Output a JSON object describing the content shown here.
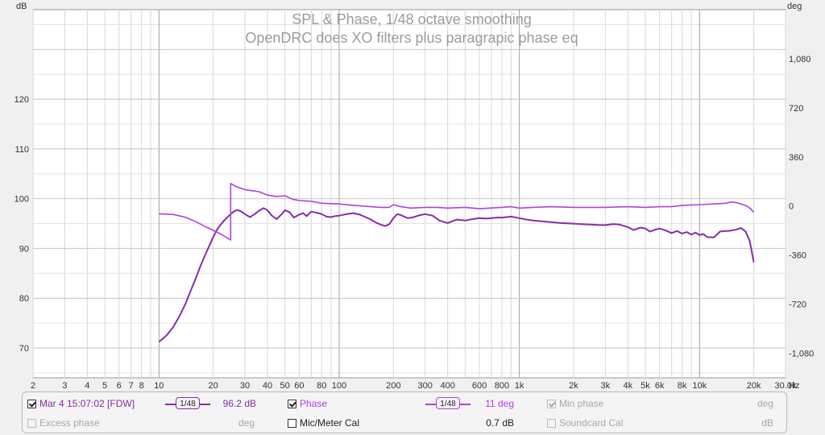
{
  "chart_data": {
    "type": "line",
    "title": "SPL & Phase, 1/48 octave smoothing",
    "subtitle": "OpenDRC does XO filters plus paragrapic phase eq",
    "ylabel_left": "dB",
    "ylabel_right": "deg",
    "xlabel": "Hz",
    "x_scale": "log",
    "xlim": [
      2,
      30000
    ],
    "ylim_left": [
      64,
      138
    ],
    "ylim_right": [
      -1260,
      1440
    ],
    "grid": true,
    "x_ticks": [
      {
        "v": 2,
        "label": "2"
      },
      {
        "v": 3,
        "label": "3"
      },
      {
        "v": 4,
        "label": "4"
      },
      {
        "v": 5,
        "label": "5"
      },
      {
        "v": 6,
        "label": "6"
      },
      {
        "v": 7,
        "label": "7"
      },
      {
        "v": 8,
        "label": "8"
      },
      {
        "v": 10,
        "label": "10"
      },
      {
        "v": 20,
        "label": "20"
      },
      {
        "v": 30,
        "label": "30"
      },
      {
        "v": 40,
        "label": "40"
      },
      {
        "v": 50,
        "label": "50"
      },
      {
        "v": 60,
        "label": "60"
      },
      {
        "v": 80,
        "label": "80"
      },
      {
        "v": 100,
        "label": "100"
      },
      {
        "v": 200,
        "label": "200"
      },
      {
        "v": 300,
        "label": "300"
      },
      {
        "v": 400,
        "label": "400"
      },
      {
        "v": 600,
        "label": "600"
      },
      {
        "v": 800,
        "label": "800"
      },
      {
        "v": 1000,
        "label": "1k"
      },
      {
        "v": 2000,
        "label": "2k"
      },
      {
        "v": 3000,
        "label": "3k"
      },
      {
        "v": 4000,
        "label": "4k"
      },
      {
        "v": 5000,
        "label": "5k"
      },
      {
        "v": 6000,
        "label": "6k"
      },
      {
        "v": 8000,
        "label": "8k"
      },
      {
        "v": 10000,
        "label": "10k"
      },
      {
        "v": 20000,
        "label": "20k"
      },
      {
        "v": 30000,
        "label": "30.0k"
      }
    ],
    "y_ticks_left": [
      {
        "v": 70,
        "label": "70"
      },
      {
        "v": 80,
        "label": "80"
      },
      {
        "v": 90,
        "label": "90"
      },
      {
        "v": 100,
        "label": "100"
      },
      {
        "v": 110,
        "label": "110"
      },
      {
        "v": 120,
        "label": "120"
      }
    ],
    "y_ticks_right": [
      {
        "v": 1080,
        "label": "1,080"
      },
      {
        "v": 720,
        "label": "720"
      },
      {
        "v": 360,
        "label": "360"
      },
      {
        "v": 0,
        "label": "0"
      },
      {
        "v": -360,
        "label": "-360"
      },
      {
        "v": -720,
        "label": "-720"
      },
      {
        "v": -1080,
        "label": "-1,080"
      }
    ],
    "series": [
      {
        "name": "Mar 4 15:07:02 [FDW]",
        "axis": "left",
        "color": "#8a2ba8",
        "x": [
          10,
          11,
          12,
          13,
          14,
          15,
          16,
          17,
          18,
          19,
          20,
          21,
          22,
          23,
          24,
          25,
          26,
          27,
          28,
          29,
          30,
          32,
          34,
          36,
          38,
          40,
          42,
          45,
          48,
          50,
          53,
          56,
          60,
          63,
          66,
          70,
          75,
          80,
          85,
          90,
          95,
          100,
          110,
          120,
          130,
          140,
          150,
          160,
          170,
          180,
          190,
          200,
          210,
          220,
          240,
          260,
          280,
          300,
          330,
          360,
          400,
          420,
          450,
          500,
          550,
          600,
          650,
          700,
          750,
          800,
          850,
          900,
          1000,
          1100,
          1200,
          1300,
          1500,
          1700,
          2000,
          2200,
          2500,
          2800,
          3000,
          3300,
          3600,
          4000,
          4300,
          4700,
          5000,
          5300,
          5700,
          6000,
          6500,
          7000,
          7500,
          8000,
          8500,
          9000,
          9500,
          10000,
          10500,
          11000,
          12000,
          13000,
          14000,
          15000,
          16000,
          17000,
          18000,
          19000,
          20000
        ],
        "y": [
          71.2,
          72.5,
          74.2,
          76.4,
          78.8,
          81.5,
          84,
          86.5,
          88.6,
          90.5,
          92.3,
          93.8,
          94.8,
          95.6,
          96.3,
          96.9,
          97.4,
          97.7,
          97.6,
          97.3,
          96.9,
          96.3,
          96.9,
          97.6,
          98.1,
          97.7,
          96.7,
          95.9,
          96.9,
          97.7,
          97.3,
          96.2,
          96.8,
          97.1,
          96.5,
          97.4,
          97.2,
          96.9,
          96.4,
          96.3,
          96.5,
          96.6,
          96.9,
          97.1,
          96.8,
          96.3,
          95.8,
          95.2,
          94.8,
          94.5,
          94.9,
          96.1,
          96.9,
          96.7,
          96.1,
          96.3,
          96.7,
          96.9,
          96.6,
          95.6,
          95.1,
          95.4,
          95.8,
          95.6,
          95.9,
          96.1,
          96,
          96.1,
          96.2,
          96.2,
          96.3,
          96.4,
          96.1,
          95.8,
          95.6,
          95.5,
          95.3,
          95.1,
          95,
          94.9,
          94.8,
          94.7,
          94.7,
          94.9,
          94.8,
          94.3,
          93.7,
          94.2,
          94,
          93.4,
          93.8,
          94,
          93.6,
          93.1,
          93.5,
          93,
          93.3,
          92.8,
          93.2,
          92.7,
          92.9,
          92.3,
          92.2,
          93.4,
          93.5,
          93.6,
          93.8,
          94.1,
          93.4,
          91.5,
          87.2
        ]
      },
      {
        "name": "Phase",
        "axis": "right",
        "color": "#b040e0",
        "x": [
          10,
          12,
          14,
          16,
          18,
          20,
          22,
          25,
          25,
          27,
          30,
          33,
          36,
          40,
          45,
          50,
          55,
          60,
          70,
          80,
          100,
          120,
          150,
          170,
          190,
          200,
          220,
          250,
          300,
          350,
          400,
          500,
          600,
          800,
          900,
          1000,
          1200,
          1500,
          2000,
          3000,
          4000,
          5000,
          6000,
          7000,
          8000,
          10000,
          12000,
          14000,
          15000,
          16000,
          18000,
          19000,
          20000
        ],
        "y": [
          -57,
          -62,
          -82,
          -115,
          -150,
          -178,
          -205,
          -250,
          165,
          140,
          120,
          112,
          105,
          80,
          70,
          75,
          50,
          40,
          35,
          20,
          15,
          5,
          -5,
          -10,
          -10,
          10,
          -5,
          -15,
          -10,
          -10,
          -15,
          -10,
          -20,
          -10,
          -5,
          -15,
          -10,
          -5,
          -10,
          -10,
          -5,
          -10,
          -5,
          -5,
          5,
          10,
          15,
          20,
          30,
          25,
          5,
          -15,
          -45
        ]
      }
    ]
  },
  "legend": {
    "row1": {
      "meas_name": "Mar 4 15:07:02 [FDW]",
      "meas_smoothing": "1/48",
      "meas_value": "96.2 dB",
      "phase_label": "Phase",
      "phase_smoothing": "1/48",
      "phase_value": "11 deg",
      "minphase_label": "Min phase",
      "minphase_unit": "deg"
    },
    "row2": {
      "excess_label": "Excess phase",
      "excess_unit": "deg",
      "mic_label": "Mic/Meter Cal",
      "mic_value": "0.7 dB",
      "soundcard_label": "Soundcard Cal",
      "soundcard_unit": "dB"
    }
  }
}
